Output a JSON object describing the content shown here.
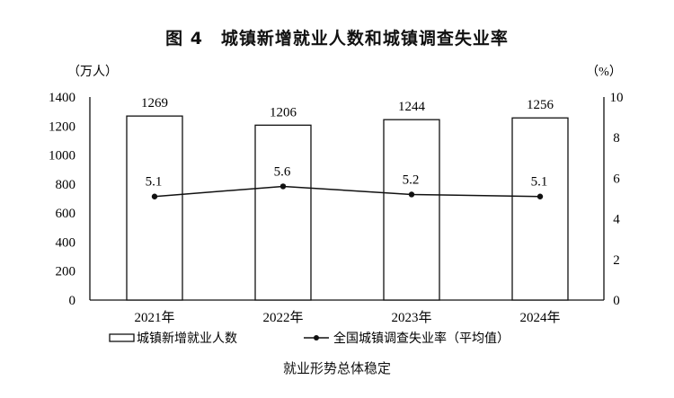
{
  "title": "图 4　城镇新增就业人数和城镇调查失业率",
  "caption": "就业形势总体稳定",
  "chart_data": {
    "type": "bar+line",
    "title": "图 4　城镇新增就业人数和城镇调查失业率",
    "categories": [
      "2021年",
      "2022年",
      "2023年",
      "2024年"
    ],
    "left_axis": {
      "label": "（万人）",
      "ylim": [
        0,
        1400
      ],
      "ticks": [
        "0",
        "200",
        "400",
        "600",
        "800",
        "1000",
        "1200",
        "1400"
      ]
    },
    "right_axis": {
      "label": "（%）",
      "ylim": [
        0,
        10
      ],
      "ticks": [
        "0",
        "2",
        "4",
        "6",
        "8",
        "10"
      ]
    },
    "series": [
      {
        "name": "城镇新增就业人数",
        "type": "bar",
        "axis": "left",
        "values": [
          1269,
          1206,
          1244,
          1256
        ],
        "labels": [
          "1269",
          "1206",
          "1244",
          "1256"
        ]
      },
      {
        "name": "全国城镇调查失业率（平均值）",
        "type": "line",
        "axis": "right",
        "values": [
          5.1,
          5.6,
          5.2,
          5.1
        ],
        "labels": [
          "5.1",
          "5.6",
          "5.2",
          "5.1"
        ]
      }
    ],
    "grid": false,
    "legend": "bottom",
    "colors": {
      "bar_fill": "#ffffff",
      "stroke": "#111111"
    }
  }
}
